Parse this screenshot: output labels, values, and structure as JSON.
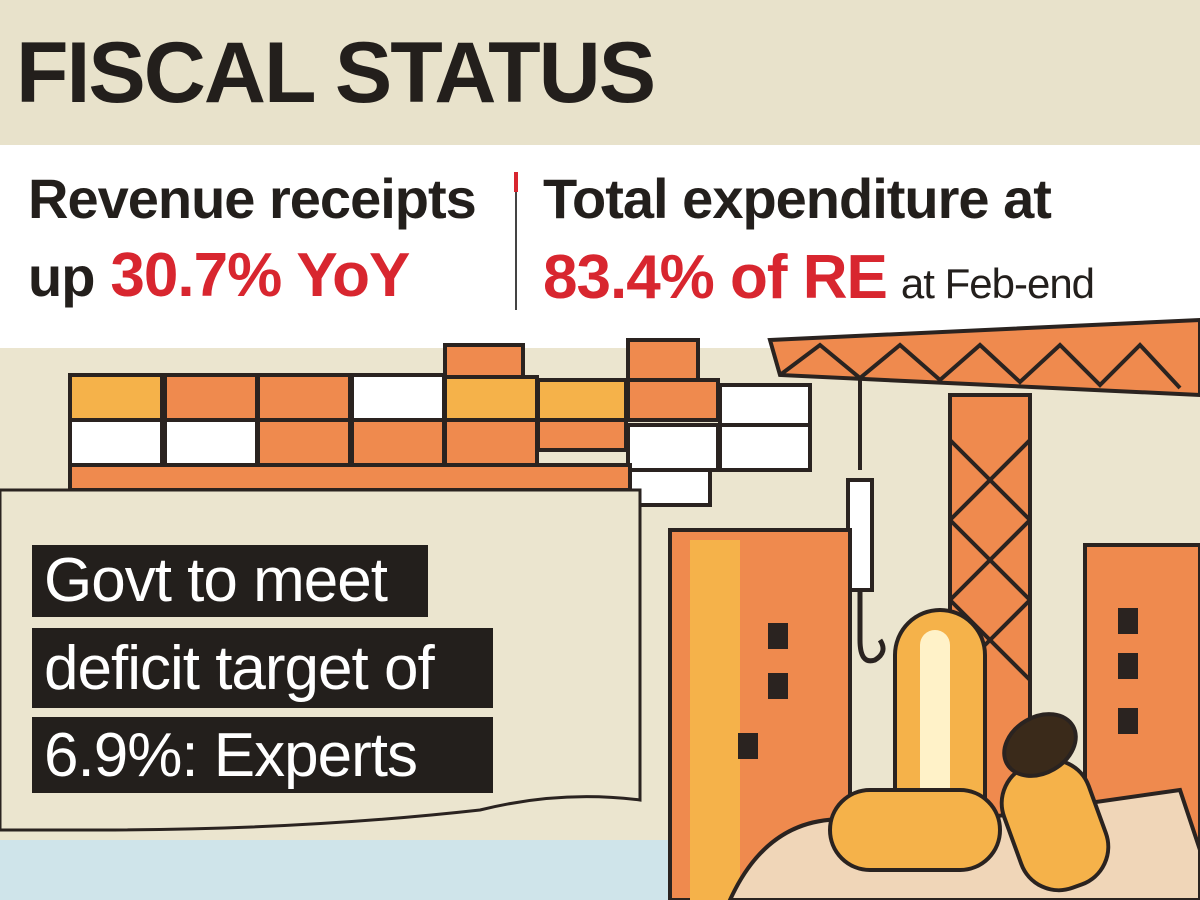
{
  "header": {
    "title": "FISCAL STATUS"
  },
  "stats": [
    {
      "line1": "Revenue receipts",
      "prefix": "up",
      "highlight": "30.7% YoY"
    },
    {
      "line1": "Total expenditure at",
      "highlight": "83.4% of RE",
      "suffix": "at Feb-end"
    }
  ],
  "headline": {
    "lines": [
      "Govt to meet",
      "deficit target of",
      "6.9%: Experts"
    ]
  }
}
